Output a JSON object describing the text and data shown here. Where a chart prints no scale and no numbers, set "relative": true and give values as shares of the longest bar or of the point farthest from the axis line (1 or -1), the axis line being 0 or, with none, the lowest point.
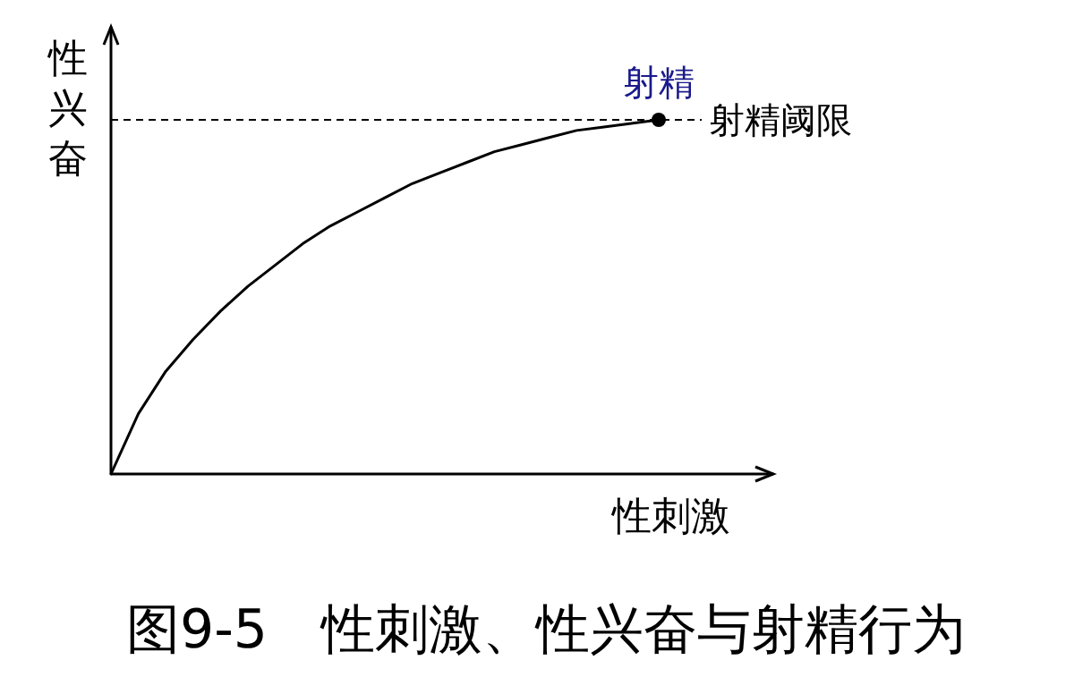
{
  "chart_data": {
    "type": "line",
    "relative": true,
    "title": "图9-5　性刺激、性兴奋与射精行为",
    "xlabel": "性刺激",
    "ylabel": "性兴奋",
    "categories": [
      null,
      null,
      null,
      null,
      null,
      null,
      null,
      null,
      null,
      null,
      null,
      null,
      null,
      null,
      null,
      null,
      null,
      null,
      null,
      null,
      null
    ],
    "series": [
      {
        "color": "#000000",
        "values": [
          0,
          0.17,
          0.29,
          0.38,
          0.46,
          0.53,
          0.59,
          0.65,
          0.7,
          0.74,
          0.78,
          0.82,
          0.85,
          0.88,
          0.91,
          0.93,
          0.95,
          0.97,
          0.98,
          0.99,
          1
        ]
      }
    ],
    "ref_lines": [
      {
        "axis": "y",
        "value": 1,
        "label": "射精阈限",
        "color": "#000000",
        "line_style": "dashed"
      }
    ],
    "annotations": [
      {
        "text": "射精",
        "y": 1
      }
    ]
  }
}
